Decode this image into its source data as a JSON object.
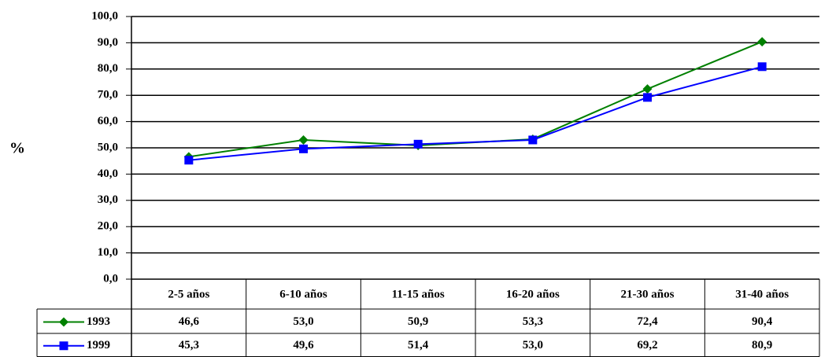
{
  "chart_data": {
    "type": "line",
    "y_label": "%",
    "categories": [
      "2-5 años",
      "6-10 años",
      "11-15 años",
      "16-20 años",
      "21-30 años",
      "31-40 años"
    ],
    "series": [
      {
        "name": "1993",
        "color": "#008000",
        "marker": "diamond",
        "values": [
          46.6,
          53.0,
          50.9,
          53.3,
          72.4,
          90.4
        ],
        "value_labels": [
          "46,6",
          "53,0",
          "50,9",
          "53,3",
          "72,4",
          "90,4"
        ]
      },
      {
        "name": "1999",
        "color": "#0000ff",
        "marker": "square",
        "values": [
          45.3,
          49.6,
          51.4,
          53.0,
          69.2,
          80.9
        ],
        "value_labels": [
          "45,3",
          "49,6",
          "51,4",
          "53,0",
          "69,2",
          "80,9"
        ]
      }
    ],
    "ylim": [
      0,
      100
    ],
    "yticks": [
      {
        "value": 0,
        "label": "0,0"
      },
      {
        "value": 10,
        "label": "10,0"
      },
      {
        "value": 20,
        "label": "20,0"
      },
      {
        "value": 30,
        "label": "30,0"
      },
      {
        "value": 40,
        "label": "40,0"
      },
      {
        "value": 50,
        "label": "50,0"
      },
      {
        "value": 60,
        "label": "60,0"
      },
      {
        "value": 70,
        "label": "70,0"
      },
      {
        "value": 80,
        "label": "80,0"
      },
      {
        "value": 90,
        "label": "90,0"
      },
      {
        "value": 100,
        "label": "100,0"
      }
    ],
    "grid": true
  }
}
